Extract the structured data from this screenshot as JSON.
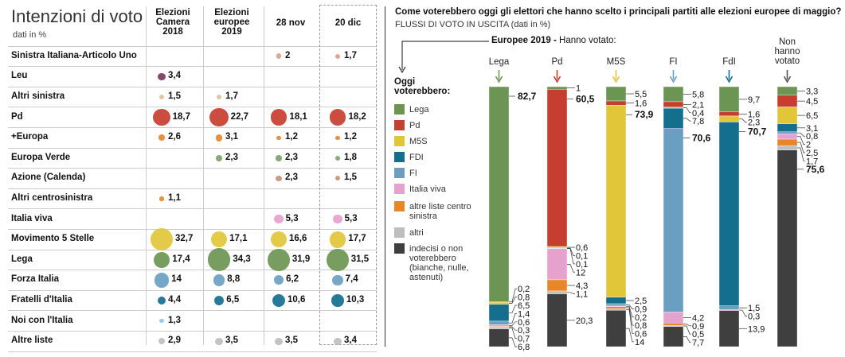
{
  "table": {
    "title": "Intenzioni di voto",
    "subtitle": "dati in %",
    "columns": [
      {
        "l1": "Elezioni",
        "l2": "Camera",
        "l3": "2018"
      },
      {
        "l1": "Elezioni",
        "l2": "europee",
        "l3": "2019"
      },
      {
        "l1": "",
        "l2": "28 nov",
        "l3": ""
      },
      {
        "l1": "",
        "l2": "20 dic",
        "l3": ""
      }
    ],
    "bubble_colors": {
      "Sinistra Italiana-Articolo Uno": "#d9a08c",
      "Leu": "#7a3a5e",
      "Altri sinistra": "#e0c09a",
      "Pd": "#c53e30",
      "+Europa": "#e8872a",
      "Europa Verde": "#7ea36a",
      "Azione (Calenda)": "#c9917b",
      "Altri centrosinistra": "#e8872a",
      "Italia viva": "#e6a1cd",
      "Movimento 5 Stelle": "#e2c63a",
      "Lega": "#6c9553",
      "Forza Italia": "#6a9fc2",
      "Fratelli d'Italia": "#146f8f",
      "Noi con l'Italia": "#8fc8e6",
      "Altre liste": "#bcbec0"
    },
    "rows": [
      {
        "party": "Sinistra Italiana-Articolo Uno",
        "values": [
          null,
          null,
          "2",
          "1,7"
        ],
        "nums": [
          null,
          null,
          2,
          1.7
        ]
      },
      {
        "party": "Leu",
        "values": [
          "3,4",
          null,
          null,
          null
        ],
        "nums": [
          3.4,
          null,
          null,
          null
        ]
      },
      {
        "party": "Altri sinistra",
        "values": [
          "1,5",
          "1,7",
          null,
          null
        ],
        "nums": [
          1.5,
          1.7,
          null,
          null
        ]
      },
      {
        "party": "Pd",
        "values": [
          "18,7",
          "22,7",
          "18,1",
          "18,2"
        ],
        "nums": [
          18.7,
          22.7,
          18.1,
          18.2
        ]
      },
      {
        "party": "+Europa",
        "values": [
          "2,6",
          "3,1",
          "1,2",
          "1,2"
        ],
        "nums": [
          2.6,
          3.1,
          1.2,
          1.2
        ]
      },
      {
        "party": "Europa Verde",
        "values": [
          null,
          "2,3",
          "2,3",
          "1,8"
        ],
        "nums": [
          null,
          2.3,
          2.3,
          1.8
        ]
      },
      {
        "party": "Azione (Calenda)",
        "values": [
          null,
          null,
          "2,3",
          "1,5"
        ],
        "nums": [
          null,
          null,
          2.3,
          1.5
        ]
      },
      {
        "party": "Altri centrosinistra",
        "values": [
          "1,1",
          null,
          null,
          null
        ],
        "nums": [
          1.1,
          null,
          null,
          null
        ]
      },
      {
        "party": "Italia viva",
        "values": [
          null,
          null,
          "5,3",
          "5,3"
        ],
        "nums": [
          null,
          null,
          5.3,
          5.3
        ]
      },
      {
        "party": "Movimento 5 Stelle",
        "values": [
          "32,7",
          "17,1",
          "16,6",
          "17,7"
        ],
        "nums": [
          32.7,
          17.1,
          16.6,
          17.7
        ]
      },
      {
        "party": "Lega",
        "values": [
          "17,4",
          "34,3",
          "31,9",
          "31,5"
        ],
        "nums": [
          17.4,
          34.3,
          31.9,
          31.5
        ]
      },
      {
        "party": "Forza Italia",
        "values": [
          "14",
          "8,8",
          "6,2",
          "7,4"
        ],
        "nums": [
          14,
          8.8,
          6.2,
          7.4
        ]
      },
      {
        "party": "Fratelli d'Italia",
        "values": [
          "4,4",
          "6,5",
          "10,6",
          "10,3"
        ],
        "nums": [
          4.4,
          6.5,
          10.6,
          10.3
        ]
      },
      {
        "party": "Noi con l'Italia",
        "values": [
          "1,3",
          null,
          null,
          null
        ],
        "nums": [
          1.3,
          null,
          null,
          null
        ]
      },
      {
        "party": "Altre liste",
        "values": [
          "2,9",
          "3,5",
          "3,5",
          "3,4"
        ],
        "nums": [
          2.9,
          3.5,
          3.5,
          3.4
        ]
      }
    ]
  },
  "flows": {
    "title": "Come voterebbero oggi gli elettori che hanno scelto i principali partiti alle elezioni europee di maggio?",
    "subtitle": "FLUSSI DI VOTO IN USCITA (dati in %)",
    "header_bold": "Europee 2019 -",
    "header_rest": " Hanno votato:",
    "legend_title": "Oggi voterebbero:",
    "legend": [
      {
        "key": "lega",
        "label": "Lega",
        "color": "#6c9553"
      },
      {
        "key": "pd",
        "label": "Pd",
        "color": "#c53e30"
      },
      {
        "key": "m5s",
        "label": "M5S",
        "color": "#e2c63a"
      },
      {
        "key": "fdi",
        "label": "FDI",
        "color": "#146f8f"
      },
      {
        "key": "fi",
        "label": "FI",
        "color": "#6a9fc2"
      },
      {
        "key": "iv",
        "label": "Italia viva",
        "color": "#e6a1cd"
      },
      {
        "key": "altre_cs",
        "label": "altre liste centro sinistra",
        "color": "#e8872a"
      },
      {
        "key": "altri",
        "label": "altri",
        "color": "#bcbec0"
      },
      {
        "key": "indecisi",
        "label": "indecisi o non voterebbero (bianche, nulle, astenuti)",
        "color": "#3f3f3f"
      }
    ]
  },
  "chart_data": {
    "type": "bar",
    "stacked": true,
    "title": "Come voterebbero oggi gli elettori che hanno scelto i principali partiti alle elezioni europee di maggio?",
    "categories": [
      "Lega",
      "Pd",
      "M5S",
      "FI",
      "FdI",
      "Non hanno votato"
    ],
    "arrow_colors": [
      "#6c9553",
      "#c53e30",
      "#e2c63a",
      "#6a9fc2",
      "#146f8f",
      "#555555"
    ],
    "stack_order": [
      "lega",
      "pd",
      "m5s",
      "fdi",
      "fi",
      "iv",
      "altre_cs",
      "altri",
      "indecisi"
    ],
    "series": [
      {
        "name": "Lega",
        "key": "lega",
        "values": [
          82.7,
          1,
          5.5,
          5.8,
          9.7,
          3.3
        ],
        "labels": [
          "82,7",
          "1",
          "5,5",
          "5,8",
          "9,7",
          "3,3"
        ]
      },
      {
        "name": "Pd",
        "key": "pd",
        "values": [
          0.2,
          60.5,
          1.6,
          2.1,
          1.6,
          4.5
        ],
        "labels": [
          "0,2",
          "60,5",
          "1,6",
          "2,1",
          "1,6",
          "4,5"
        ]
      },
      {
        "name": "M5S",
        "key": "m5s",
        "values": [
          0.8,
          0.6,
          73.9,
          0.4,
          2.3,
          6.5
        ],
        "labels": [
          "0,8",
          "0,6",
          "73,9",
          "0,4",
          "2,3",
          "6,5"
        ]
      },
      {
        "name": "FDI",
        "key": "fdi",
        "values": [
          6.5,
          0.1,
          2.5,
          7.8,
          70.7,
          3.1
        ],
        "labels": [
          "6,5",
          "0,1",
          "2,5",
          "7,8",
          "70,7",
          "3,1"
        ]
      },
      {
        "name": "FI",
        "key": "fi",
        "values": [
          1.4,
          0.1,
          0.9,
          70.6,
          1.5,
          0.8
        ],
        "labels": [
          "1,4",
          "0,1",
          "0,9",
          "70,6",
          "1,5",
          "0,8"
        ]
      },
      {
        "name": "Italia viva",
        "key": "iv",
        "values": [
          0.6,
          12,
          0.2,
          4.2,
          0.3,
          2
        ],
        "labels": [
          "0,6",
          "12",
          "0,2",
          "4,2",
          "0,3",
          "2"
        ]
      },
      {
        "name": "altre liste centro sinistra",
        "key": "altre_cs",
        "values": [
          0.3,
          4.3,
          0.8,
          0.9,
          null,
          2.5
        ],
        "labels": [
          "0,3",
          "4,3",
          "0,8",
          "0,9",
          null,
          "2,5"
        ]
      },
      {
        "name": "altri",
        "key": "altri",
        "values": [
          0.7,
          1.1,
          0.6,
          0.5,
          null,
          1.7
        ],
        "labels": [
          "0,7",
          "1,1",
          "0,6",
          "0,5",
          null,
          "1,7"
        ]
      },
      {
        "name": "indecisi o non voterebbero (bianche, nulle, astenuti)",
        "key": "indecisi",
        "values": [
          6.8,
          20.3,
          14,
          7.7,
          13.9,
          75.6
        ],
        "labels": [
          "6,8",
          "20,3",
          "14",
          "7,7",
          "13,9",
          "75,6"
        ]
      }
    ],
    "bold_labels": [
      [
        "lega"
      ],
      [
        "pd"
      ],
      [
        "m5s"
      ],
      [
        "fi"
      ],
      [
        "fdi"
      ],
      [
        "indecisi"
      ]
    ],
    "ylim": [
      0,
      100
    ],
    "grid": false,
    "legend_position": "left"
  }
}
